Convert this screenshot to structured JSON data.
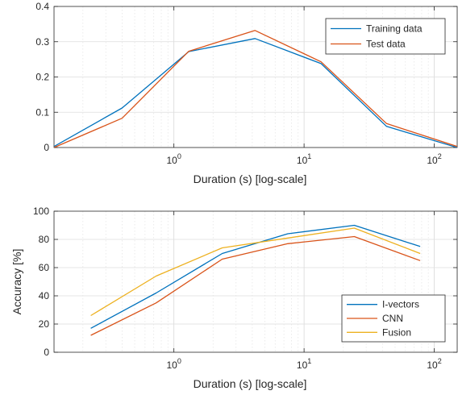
{
  "chart_data": [
    {
      "type": "line",
      "xscale": "log",
      "xlim": [
        0.12,
        150
      ],
      "ylim": [
        0,
        0.4
      ],
      "xlabel": "Duration (s) [log-scale]",
      "ylabel": "",
      "yticks": [
        0,
        0.1,
        0.2,
        0.3,
        0.4
      ],
      "ytick_labels": [
        "0",
        "0.1",
        "0.2",
        "0.3",
        "0.4"
      ],
      "xtick_labels": [
        {
          "base": "10",
          "exp": "0",
          "value": 1
        },
        {
          "base": "10",
          "exp": "1",
          "value": 10
        },
        {
          "base": "10",
          "exp": "2",
          "value": 100
        }
      ],
      "grid": true,
      "legend_position": "top-right",
      "series": [
        {
          "name": "Training data",
          "color": "#0072BD",
          "x": [
            0.12,
            0.4,
            1.3,
            4.2,
            13.5,
            43,
            150
          ],
          "y": [
            0.003,
            0.112,
            0.272,
            0.309,
            0.238,
            0.06,
            0.0
          ]
        },
        {
          "name": "Test data",
          "color": "#D95319",
          "x": [
            0.12,
            0.4,
            1.3,
            4.2,
            13.5,
            43,
            150
          ],
          "y": [
            0.0,
            0.083,
            0.273,
            0.332,
            0.243,
            0.068,
            0.003
          ]
        }
      ]
    },
    {
      "type": "line",
      "xscale": "log",
      "xlim": [
        0.12,
        150
      ],
      "ylim": [
        0,
        100
      ],
      "xlabel": "Duration (s) [log-scale]",
      "ylabel": "Accuracy [%]",
      "yticks": [
        0,
        20,
        40,
        60,
        80,
        100
      ],
      "ytick_labels": [
        "0",
        "20",
        "40",
        "60",
        "80",
        "100"
      ],
      "xtick_labels": [
        {
          "base": "10",
          "exp": "0",
          "value": 1
        },
        {
          "base": "10",
          "exp": "1",
          "value": 10
        },
        {
          "base": "10",
          "exp": "2",
          "value": 100
        }
      ],
      "grid": true,
      "legend_position": "bottom-right",
      "series": [
        {
          "name": "I-vectors",
          "color": "#0072BD",
          "x": [
            0.23,
            0.73,
            2.35,
            7.5,
            24.3,
            78
          ],
          "y": [
            17,
            42,
            70,
            84,
            90,
            75
          ]
        },
        {
          "name": "CNN",
          "color": "#D95319",
          "x": [
            0.23,
            0.73,
            2.35,
            7.5,
            24.3,
            78
          ],
          "y": [
            12,
            35,
            66,
            77,
            82,
            65
          ]
        },
        {
          "name": "Fusion",
          "color": "#EDB120",
          "x": [
            0.23,
            0.73,
            2.35,
            7.5,
            24.3,
            78
          ],
          "y": [
            26,
            54,
            74,
            81,
            88,
            70
          ]
        }
      ]
    }
  ]
}
